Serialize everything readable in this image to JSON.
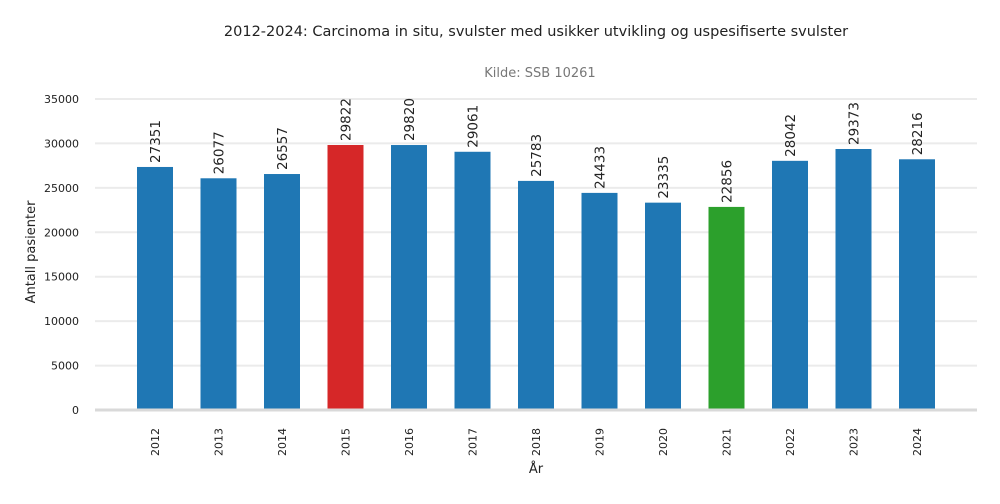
{
  "chart_data": {
    "type": "bar",
    "title": "2012-2024: Carcinoma in situ, svulster med usikker utvikling og uspesifiserte svulster",
    "subtitle": "Kilde: SSB 10261",
    "xlabel": "År",
    "ylabel": "Antall pasienter",
    "ylim": [
      0,
      35000
    ],
    "yticks": [
      0,
      5000,
      10000,
      15000,
      20000,
      25000,
      30000,
      35000
    ],
    "grid": true,
    "categories": [
      "2012",
      "2013",
      "2014",
      "2015",
      "2016",
      "2017",
      "2018",
      "2019",
      "2020",
      "2021",
      "2022",
      "2023",
      "2024"
    ],
    "values": [
      27351,
      26077,
      26557,
      29822,
      29820,
      29061,
      25783,
      24433,
      23335,
      22856,
      28042,
      29373,
      28216
    ],
    "colors": {
      "default": "#1f77b4",
      "max": "#d62728",
      "min": "#2ca02c"
    },
    "highlight": {
      "2015": "max",
      "2021": "min"
    }
  }
}
